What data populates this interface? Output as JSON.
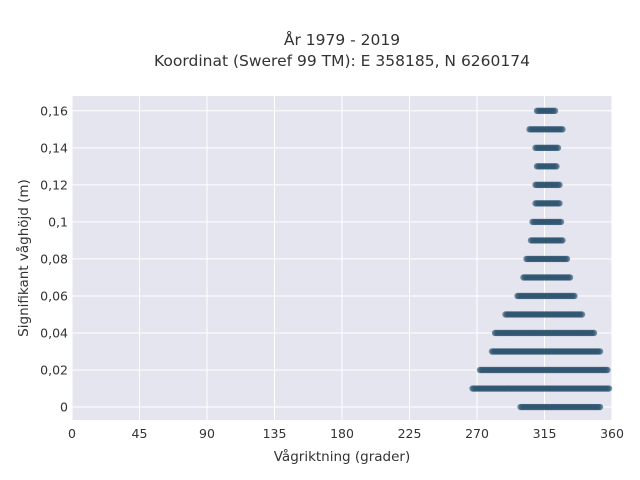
{
  "chart_data": {
    "type": "scatter",
    "title_line1": "År 1979 - 2019",
    "title_line2": "Koordinat (Sweref 99 TM): E 358185, N 6260174",
    "xlabel": "Vågriktning (grader)",
    "ylabel": "Signifikant våghöjd (m)",
    "xlim": [
      0,
      360
    ],
    "ylim": [
      -0.007,
      0.168
    ],
    "x_ticks": [
      0,
      45,
      90,
      135,
      180,
      225,
      270,
      315,
      360
    ],
    "x_tick_labels": [
      "0",
      "45",
      "90",
      "135",
      "180",
      "225",
      "270",
      "315",
      "360"
    ],
    "y_ticks": [
      0,
      0.02,
      0.04,
      0.06,
      0.08,
      0.1,
      0.12,
      0.14,
      0.16
    ],
    "y_tick_labels": [
      "0",
      "0,02",
      "0,04",
      "0,06",
      "0,08",
      "0,1",
      "0,12",
      "0,14",
      "0,16"
    ],
    "grid": true,
    "marker_color": "#2e5570",
    "background_color": "#e5e5ef",
    "rows": [
      {
        "y": 0.0,
        "x_min": 299,
        "x_max": 352
      },
      {
        "y": 0.01,
        "x_min": 267,
        "x_max": 358
      },
      {
        "y": 0.02,
        "x_min": 272,
        "x_max": 357
      },
      {
        "y": 0.03,
        "x_min": 280,
        "x_max": 352
      },
      {
        "y": 0.04,
        "x_min": 282,
        "x_max": 348
      },
      {
        "y": 0.05,
        "x_min": 289,
        "x_max": 340
      },
      {
        "y": 0.06,
        "x_min": 297,
        "x_max": 335
      },
      {
        "y": 0.07,
        "x_min": 301,
        "x_max": 332
      },
      {
        "y": 0.08,
        "x_min": 303,
        "x_max": 330
      },
      {
        "y": 0.09,
        "x_min": 306,
        "x_max": 327
      },
      {
        "y": 0.1,
        "x_min": 307,
        "x_max": 326
      },
      {
        "y": 0.11,
        "x_min": 309,
        "x_max": 325
      },
      {
        "y": 0.12,
        "x_min": 309,
        "x_max": 325
      },
      {
        "y": 0.13,
        "x_min": 310,
        "x_max": 323
      },
      {
        "y": 0.14,
        "x_min": 309,
        "x_max": 324
      },
      {
        "y": 0.15,
        "x_min": 305,
        "x_max": 327
      },
      {
        "y": 0.16,
        "x_min": 310,
        "x_max": 322
      }
    ]
  }
}
